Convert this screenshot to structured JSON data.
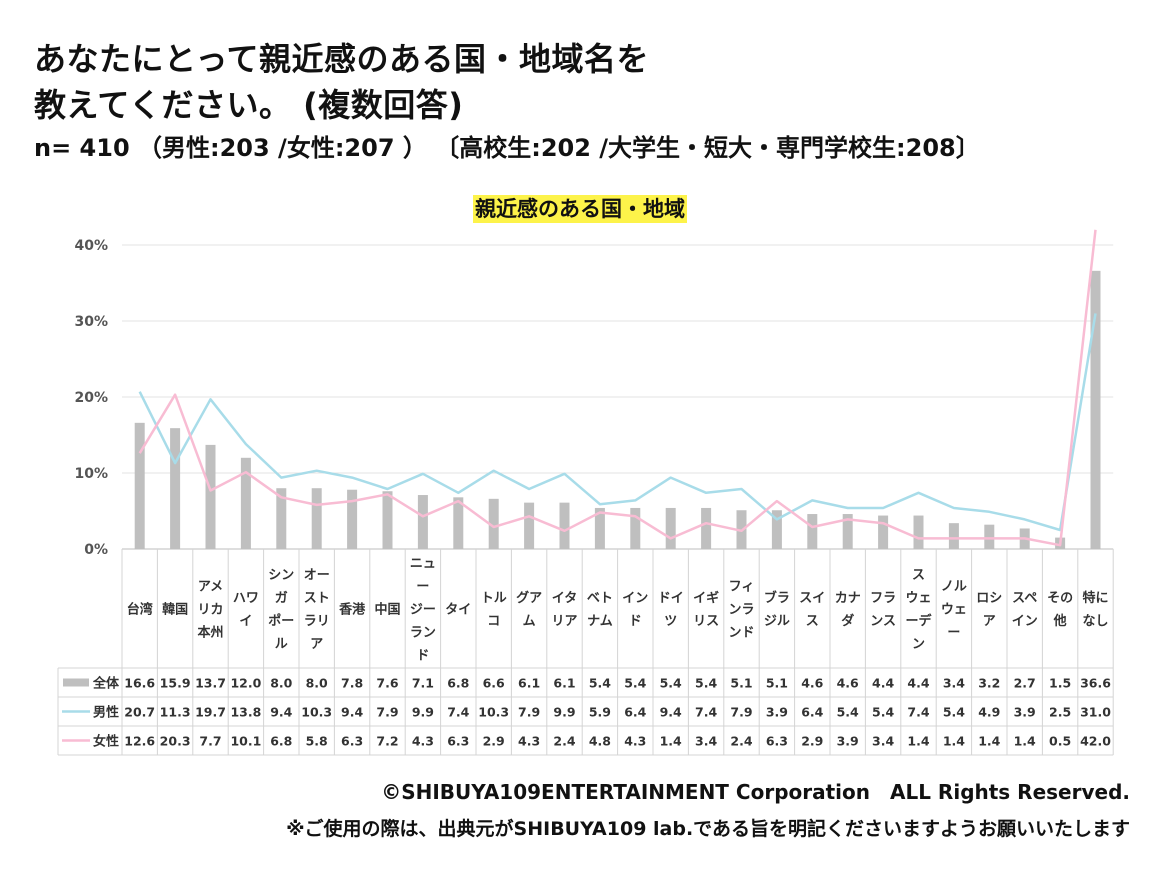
{
  "header": {
    "title_line1": "あなたにとって親近感のある国・地域名を",
    "title_line2": "教えてください。 (複数回答)",
    "sample": "n= 410 （男性:203 /女性:207 ） 〔高校生:202 /大学生・短大・専門学校生:208〕"
  },
  "chart_data": {
    "type": "bar",
    "title": "親近感のある国・地域",
    "categories": [
      "台湾",
      "韓国",
      "アメリカ本州",
      "ハワイ",
      "シンガポール",
      "オーストラリア",
      "香港",
      "中国",
      "ニュージーランド",
      "タイ",
      "トルコ",
      "グアム",
      "イタリア",
      "ベトナム",
      "インド",
      "ドイツ",
      "イギリス",
      "フィンランド",
      "ブラジル",
      "スイス",
      "カナダ",
      "フランス",
      "スウェーデン",
      "ノルウェー",
      "ロシア",
      "スペイン",
      "その他",
      "特になし"
    ],
    "category_lines": [
      [
        "台湾"
      ],
      [
        "韓国"
      ],
      [
        "アメ",
        "リカ",
        "本州"
      ],
      [
        "ハワ",
        "イ"
      ],
      [
        "シン",
        "ガ",
        "ポー",
        "ル"
      ],
      [
        "オー",
        "スト",
        "ラリ",
        "ア"
      ],
      [
        "香港"
      ],
      [
        "中国"
      ],
      [
        "ニュ",
        "ー",
        "ジー",
        "ラン",
        "ド"
      ],
      [
        "タイ"
      ],
      [
        "トル",
        "コ"
      ],
      [
        "グア",
        "ム"
      ],
      [
        "イタ",
        "リア"
      ],
      [
        "ベト",
        "ナム"
      ],
      [
        "イン",
        "ド"
      ],
      [
        "ドイ",
        "ツ"
      ],
      [
        "イギ",
        "リス"
      ],
      [
        "フィ",
        "ンラ",
        "ンド"
      ],
      [
        "ブラ",
        "ジル"
      ],
      [
        "スイ",
        "ス"
      ],
      [
        "カナ",
        "ダ"
      ],
      [
        "フラ",
        "ンス"
      ],
      [
        "ス",
        "ウェ",
        "ーデ",
        "ン"
      ],
      [
        "ノル",
        "ウェ",
        "ー"
      ],
      [
        "ロシ",
        "ア"
      ],
      [
        "スペ",
        "イン"
      ],
      [
        "その",
        "他"
      ],
      [
        "特に",
        "なし"
      ]
    ],
    "series": [
      {
        "name": "全体",
        "kind": "bar",
        "color": "#bfbfbf",
        "values": [
          16.6,
          15.9,
          13.7,
          12.0,
          8.0,
          8.0,
          7.8,
          7.6,
          7.1,
          6.8,
          6.6,
          6.1,
          6.1,
          5.4,
          5.4,
          5.4,
          5.4,
          5.1,
          5.1,
          4.6,
          4.6,
          4.4,
          4.4,
          3.4,
          3.2,
          2.7,
          1.5,
          36.6
        ],
        "labels": [
          "16.6",
          "15.9",
          "13.7",
          "12.0",
          "8.0",
          "8.0",
          "7.8",
          "7.6",
          "7.1",
          "6.8",
          "6.6",
          "6.1",
          "6.1",
          "5.4",
          "5.4",
          "5.4",
          "5.4",
          "5.1",
          "5.1",
          "4.6",
          "4.6",
          "4.4",
          "4.4",
          "3.4",
          "3.2",
          "2.7",
          "1.5",
          "36.6"
        ]
      },
      {
        "name": "男性",
        "kind": "line",
        "color": "#a8dce9",
        "values": [
          20.7,
          11.3,
          19.7,
          13.8,
          9.4,
          10.3,
          9.4,
          7.9,
          9.9,
          7.4,
          10.3,
          7.9,
          9.9,
          5.9,
          6.4,
          9.4,
          7.4,
          7.9,
          3.9,
          6.4,
          5.4,
          5.4,
          7.4,
          5.4,
          4.9,
          3.9,
          2.5,
          31.0
        ],
        "labels": [
          "20.7",
          "11.3",
          "19.7",
          "13.8",
          "9.4",
          "10.3",
          "9.4",
          "7.9",
          "9.9",
          "7.4",
          "10.3",
          "7.9",
          "9.9",
          "5.9",
          "6.4",
          "9.4",
          "7.4",
          "7.9",
          "3.9",
          "6.4",
          "5.4",
          "5.4",
          "7.4",
          "5.4",
          "4.9",
          "3.9",
          "2.5",
          "31.0"
        ]
      },
      {
        "name": "女性",
        "kind": "line",
        "color": "#f8bcd3",
        "values": [
          12.6,
          20.3,
          7.7,
          10.1,
          6.8,
          5.8,
          6.3,
          7.2,
          4.3,
          6.3,
          2.9,
          4.3,
          2.4,
          4.8,
          4.3,
          1.4,
          3.4,
          2.4,
          6.3,
          2.9,
          3.9,
          3.4,
          1.4,
          1.4,
          1.4,
          1.4,
          0.5,
          42.0
        ],
        "labels": [
          "12.6",
          "20.3",
          "7.7",
          "10.1",
          "6.8",
          "5.8",
          "6.3",
          "7.2",
          "4.3",
          "6.3",
          "2.9",
          "4.3",
          "2.4",
          "4.8",
          "4.3",
          "1.4",
          "3.4",
          "2.4",
          "6.3",
          "2.9",
          "3.9",
          "3.4",
          "1.4",
          "1.4",
          "1.4",
          "1.4",
          "0.5",
          "42.0"
        ]
      }
    ],
    "y_ticks": [
      "0%",
      "10%",
      "20%",
      "30%",
      "40%"
    ],
    "ylim": [
      0,
      40
    ],
    "grid": true,
    "legend": "data-table"
  },
  "footer": {
    "copyright": "©SHIBUYA109ENTERTAINMENT Corporation　ALL Rights Reserved.",
    "notice": "※ご使用の際は、出典元がSHIBUYA109 lab.である旨を明記くださいますようお願いいたします"
  }
}
